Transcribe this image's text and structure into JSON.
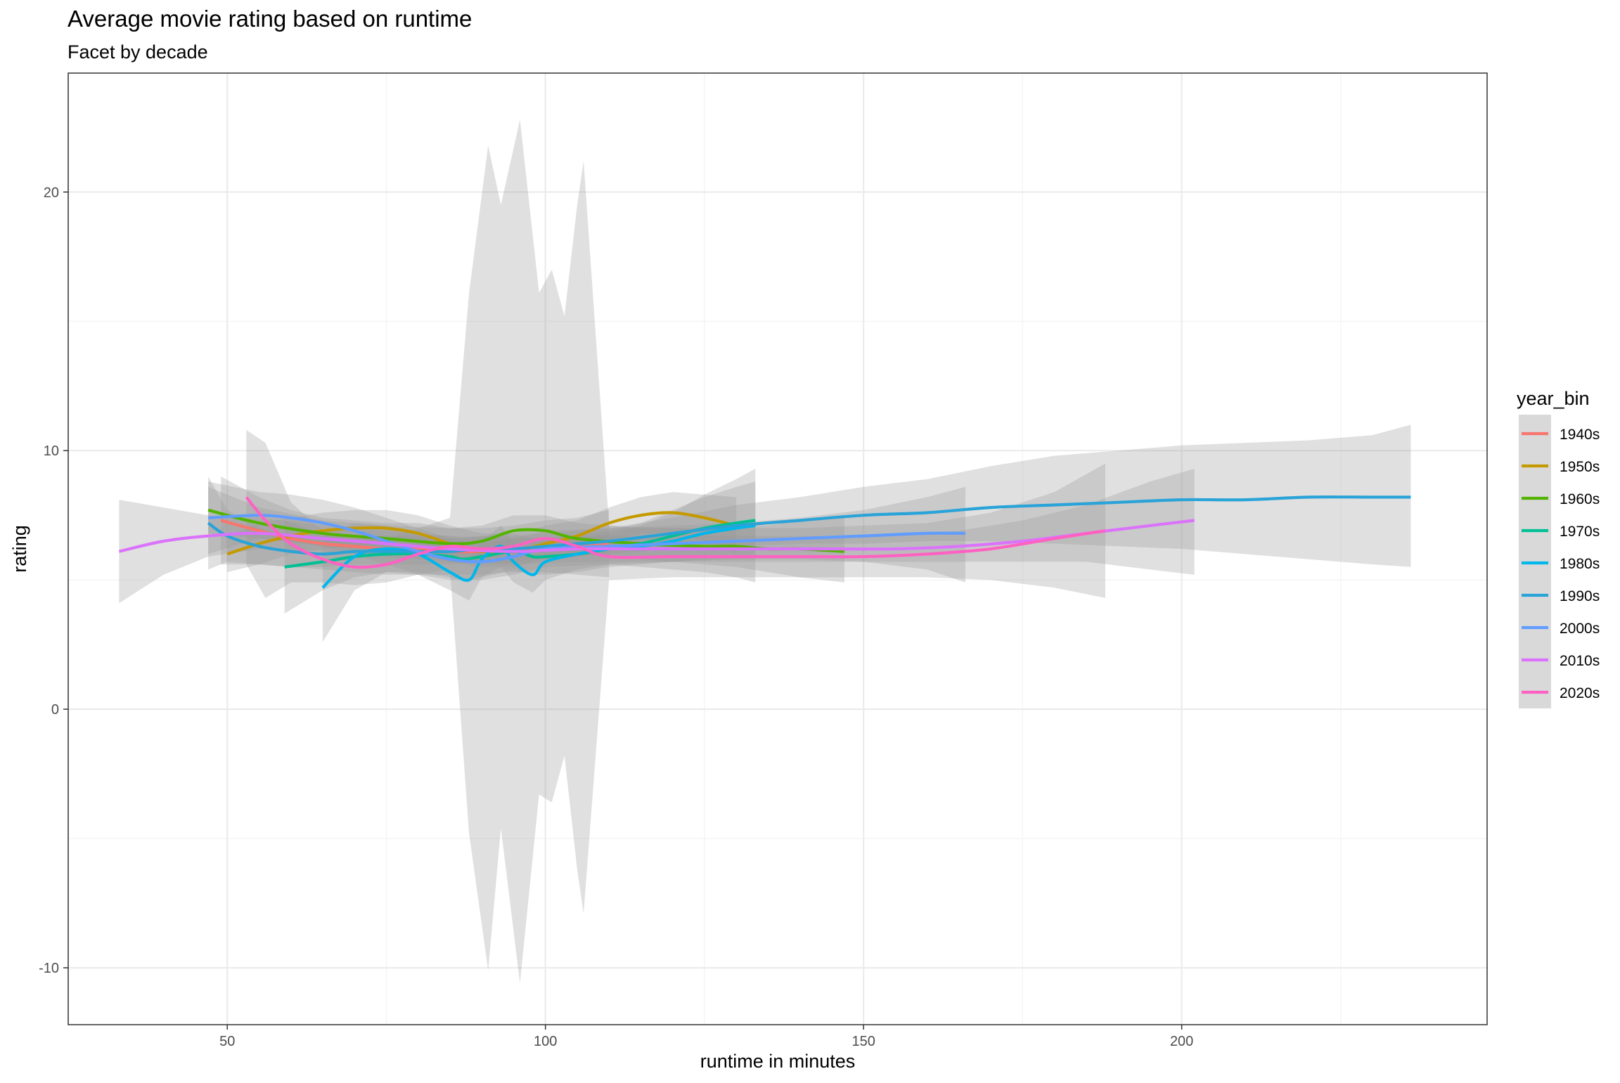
{
  "chart_data": {
    "type": "line",
    "title": "Average movie rating based on runtime",
    "subtitle": "Facet by decade",
    "xlabel": "runtime in minutes",
    "ylabel": "rating",
    "xlim": [
      25,
      248
    ],
    "ylim": [
      -12.2,
      24.6
    ],
    "x_ticks": [
      50,
      100,
      150,
      200
    ],
    "y_ticks": [
      -10,
      0,
      10,
      20
    ],
    "grid": true,
    "legend": {
      "title": "year_bin",
      "position": "right"
    },
    "colors": {
      "ribbon": "#999999",
      "panel_border": "#333333",
      "grid_major": "#ebebeb",
      "grid_minor": "#f5f5f5"
    },
    "series": [
      {
        "name": "1940s",
        "color": "#F8766D",
        "x": [
          49,
          55,
          60,
          65,
          70,
          75,
          80,
          85,
          90,
          95,
          100,
          105,
          110
        ],
        "y": [
          7.3,
          6.9,
          6.6,
          6.4,
          6.3,
          6.2,
          6.2,
          6.1,
          6.1,
          6.2,
          6.3,
          6.3,
          6.4
        ],
        "band": {
          "x": [
            49,
            55,
            60,
            65,
            70,
            75,
            80,
            85,
            90,
            95,
            100,
            105,
            110
          ],
          "lo": [
            5.6,
            5.6,
            5.5,
            5.4,
            5.3,
            5.2,
            5.2,
            5.2,
            5.2,
            5.3,
            5.3,
            5.2,
            5.1
          ],
          "hi": [
            9.0,
            8.2,
            7.7,
            7.4,
            7.3,
            7.2,
            7.2,
            7.0,
            7.0,
            7.1,
            7.3,
            7.4,
            7.7
          ]
        }
      },
      {
        "name": "1950s",
        "color": "#C49A00",
        "x": [
          50,
          55,
          60,
          65,
          70,
          75,
          80,
          85,
          90,
          95,
          100,
          105,
          110,
          115,
          120,
          125,
          130
        ],
        "y": [
          6.0,
          6.4,
          6.7,
          6.9,
          7.0,
          7.0,
          6.8,
          6.4,
          6.1,
          6.1,
          6.4,
          6.7,
          7.2,
          7.5,
          7.6,
          7.4,
          7.1
        ],
        "band": {
          "x": [
            50,
            55,
            60,
            65,
            70,
            75,
            80,
            85,
            90,
            95,
            100,
            105,
            110,
            115,
            120,
            125,
            130
          ],
          "lo": [
            5.3,
            5.6,
            6.0,
            6.2,
            6.3,
            6.3,
            6.1,
            5.7,
            5.5,
            5.5,
            5.8,
            6.1,
            6.5,
            6.8,
            6.8,
            6.5,
            6.0
          ],
          "hi": [
            6.7,
            7.2,
            7.4,
            7.6,
            7.7,
            7.7,
            7.5,
            7.1,
            6.8,
            6.8,
            7.1,
            7.3,
            7.8,
            8.2,
            8.4,
            8.3,
            8.2
          ]
        }
      },
      {
        "name": "1960s",
        "color": "#53B400",
        "x": [
          47,
          55,
          65,
          75,
          85,
          90,
          95,
          100,
          105,
          115,
          125,
          130,
          135,
          140,
          147
        ],
        "y": [
          7.7,
          7.2,
          6.8,
          6.6,
          6.4,
          6.5,
          6.9,
          6.9,
          6.6,
          6.4,
          6.3,
          6.3,
          6.2,
          6.2,
          6.1
        ],
        "band": {
          "x": [
            47,
            55,
            65,
            75,
            85,
            90,
            95,
            100,
            105,
            115,
            125,
            130,
            135,
            140,
            147
          ],
          "lo": [
            6.8,
            6.6,
            6.3,
            6.1,
            5.8,
            5.9,
            6.3,
            6.3,
            6.0,
            5.8,
            5.6,
            5.5,
            5.3,
            5.1,
            4.9
          ],
          "hi": [
            8.6,
            7.8,
            7.3,
            7.1,
            7.0,
            7.1,
            7.5,
            7.5,
            7.2,
            7.0,
            7.0,
            7.1,
            7.1,
            7.3,
            7.4
          ]
        }
      },
      {
        "name": "1970s",
        "color": "#00C094",
        "x": [
          59,
          65,
          70,
          75,
          80,
          85,
          87,
          90,
          95,
          98,
          100,
          105,
          110,
          115,
          120,
          125,
          130,
          133
        ],
        "y": [
          5.5,
          5.7,
          5.9,
          6.0,
          6.0,
          5.9,
          5.8,
          5.9,
          6.1,
          5.9,
          5.9,
          6.0,
          6.2,
          6.4,
          6.7,
          7.0,
          7.2,
          7.3
        ],
        "band": {
          "x": [
            59,
            65,
            70,
            75,
            80,
            85,
            87,
            90,
            95,
            98,
            100,
            105,
            110,
            115,
            120,
            125,
            130,
            133
          ],
          "lo": [
            3.7,
            4.6,
            5.1,
            5.3,
            5.3,
            5.1,
            5.0,
            5.1,
            5.4,
            5.2,
            5.2,
            5.3,
            5.5,
            5.6,
            5.7,
            5.8,
            5.8,
            5.8
          ],
          "hi": [
            7.3,
            6.8,
            6.7,
            6.7,
            6.7,
            6.7,
            6.6,
            6.7,
            6.8,
            6.6,
            6.6,
            6.7,
            6.9,
            7.2,
            7.7,
            8.2,
            8.6,
            8.8
          ]
        }
      },
      {
        "name": "1980s",
        "color": "#00B6EB",
        "x": [
          65,
          70,
          75,
          80,
          85,
          88,
          90,
          93,
          95,
          98,
          100,
          105,
          110,
          115,
          120,
          125,
          130,
          133
        ],
        "y": [
          4.7,
          5.9,
          6.2,
          6.0,
          5.3,
          5.0,
          5.8,
          6.3,
          5.7,
          5.2,
          5.7,
          6.0,
          6.2,
          6.3,
          6.5,
          6.8,
          7.0,
          7.1
        ],
        "band": {
          "x": [
            65,
            70,
            75,
            80,
            85,
            88,
            90,
            93,
            95,
            98,
            100,
            105,
            110,
            115,
            120,
            125,
            130,
            133
          ],
          "lo": [
            2.6,
            4.6,
            5.3,
            5.2,
            4.6,
            4.2,
            5.1,
            5.5,
            4.9,
            4.5,
            5.0,
            5.4,
            5.6,
            5.5,
            5.4,
            5.3,
            5.1,
            4.9
          ],
          "hi": [
            6.8,
            7.2,
            7.1,
            6.8,
            6.0,
            5.8,
            6.5,
            7.1,
            6.5,
            5.9,
            6.4,
            6.6,
            6.8,
            7.1,
            7.6,
            8.3,
            8.9,
            9.3
          ]
        }
      },
      {
        "name": "1990s",
        "color": "#29A3D8",
        "x": [
          47,
          50,
          55,
          60,
          65,
          70,
          75,
          80,
          85,
          90,
          95,
          100,
          110,
          120,
          130,
          140,
          150,
          160,
          170,
          180,
          190,
          200,
          210,
          220,
          230,
          236
        ],
        "y": [
          7.2,
          6.7,
          6.3,
          6.1,
          6.0,
          6.1,
          6.1,
          6.1,
          6.1,
          6.2,
          6.2,
          6.3,
          6.5,
          6.8,
          7.1,
          7.3,
          7.5,
          7.6,
          7.8,
          7.9,
          8.0,
          8.1,
          8.1,
          8.2,
          8.2,
          8.2
        ],
        "band": {
          "x": [
            47,
            50,
            55,
            60,
            65,
            70,
            75,
            80,
            85,
            90,
            95,
            100,
            110,
            120,
            130,
            140,
            150,
            160,
            170,
            180,
            190,
            200,
            210,
            220,
            230,
            236
          ],
          "lo": [
            5.4,
            5.7,
            5.6,
            5.5,
            5.5,
            5.6,
            5.6,
            5.6,
            5.6,
            5.7,
            5.7,
            5.8,
            6.0,
            6.2,
            6.3,
            6.4,
            6.4,
            6.5,
            6.5,
            6.4,
            6.3,
            6.2,
            6.0,
            5.8,
            5.6,
            5.5
          ],
          "hi": [
            9.0,
            7.7,
            7.0,
            6.7,
            6.5,
            6.6,
            6.6,
            6.6,
            6.6,
            6.7,
            6.7,
            6.8,
            7.0,
            7.4,
            7.9,
            8.2,
            8.6,
            8.9,
            9.4,
            9.8,
            10.0,
            10.2,
            10.3,
            10.4,
            10.6,
            11.0
          ]
        }
      },
      {
        "name": "2000s",
        "color": "#619CFF",
        "x": [
          47,
          55,
          60,
          65,
          70,
          75,
          80,
          85,
          90,
          95,
          100,
          110,
          120,
          130,
          140,
          150,
          160,
          166
        ],
        "y": [
          7.4,
          7.5,
          7.4,
          7.2,
          6.9,
          6.5,
          6.1,
          5.8,
          5.7,
          5.9,
          6.2,
          6.3,
          6.4,
          6.5,
          6.6,
          6.7,
          6.8,
          6.8
        ],
        "band": {
          "x": [
            47,
            55,
            60,
            65,
            70,
            75,
            80,
            85,
            90,
            95,
            100,
            110,
            120,
            130,
            140,
            150,
            160,
            166
          ],
          "lo": [
            6.0,
            6.6,
            6.5,
            6.3,
            6.0,
            5.6,
            5.2,
            5.0,
            5.0,
            5.2,
            5.5,
            5.6,
            5.7,
            5.8,
            5.8,
            5.7,
            5.4,
            4.9
          ],
          "hi": [
            8.8,
            8.4,
            8.3,
            8.1,
            7.8,
            7.4,
            7.0,
            6.6,
            6.4,
            6.6,
            6.9,
            7.0,
            7.1,
            7.2,
            7.4,
            7.7,
            8.2,
            8.6
          ]
        }
      },
      {
        "name": "2010s",
        "color": "#DB72FB",
        "x": [
          33,
          40,
          47,
          55,
          65,
          75,
          85,
          95,
          105,
          115,
          125,
          135,
          145,
          155,
          165,
          175,
          185,
          195,
          202
        ],
        "y": [
          6.1,
          6.5,
          6.7,
          6.8,
          6.6,
          6.4,
          6.2,
          6.1,
          6.2,
          6.2,
          6.2,
          6.2,
          6.2,
          6.2,
          6.3,
          6.5,
          6.8,
          7.1,
          7.3
        ],
        "band": {
          "x": [
            33,
            40,
            47,
            55,
            65,
            75,
            85,
            95,
            105,
            115,
            125,
            135,
            145,
            155,
            165,
            175,
            185,
            195,
            202
          ],
          "lo": [
            4.1,
            5.2,
            5.9,
            6.2,
            6.1,
            5.9,
            5.7,
            5.6,
            5.7,
            5.7,
            5.7,
            5.7,
            5.7,
            5.7,
            5.7,
            5.7,
            5.7,
            5.4,
            5.2
          ],
          "hi": [
            8.1,
            7.8,
            7.5,
            7.4,
            7.1,
            6.9,
            6.7,
            6.6,
            6.7,
            6.7,
            6.7,
            6.7,
            6.7,
            6.7,
            6.9,
            7.3,
            7.9,
            8.8,
            9.3
          ]
        }
      },
      {
        "name": "2020s",
        "color": "#FF61C3",
        "x": [
          53,
          56,
          60,
          65,
          70,
          75,
          80,
          85,
          90,
          95,
          100,
          105,
          110,
          120,
          130,
          140,
          150,
          160,
          170,
          180,
          188
        ],
        "y": [
          8.2,
          7.3,
          6.4,
          5.8,
          5.5,
          5.6,
          6.0,
          6.3,
          6.2,
          6.3,
          6.6,
          6.3,
          5.9,
          5.9,
          5.9,
          5.9,
          5.9,
          6.0,
          6.2,
          6.6,
          6.9
        ],
        "band": {
          "x": [
            53,
            56,
            60,
            65,
            70,
            75,
            80,
            85,
            88,
            91,
            93,
            96,
            99,
            101,
            103,
            105,
            106,
            110,
            120,
            130,
            140,
            150,
            160,
            170,
            180,
            188
          ],
          "lo": [
            5.6,
            4.3,
            4.9,
            4.9,
            4.8,
            4.9,
            5.2,
            5.4,
            -4.8,
            -10.1,
            -4.6,
            -10.6,
            -3.3,
            -3.6,
            -1.8,
            -6.2,
            -7.9,
            5.0,
            5.1,
            5.1,
            5.1,
            5.1,
            5.1,
            5.0,
            4.7,
            4.3
          ],
          "hi": [
            10.8,
            10.3,
            8.0,
            6.9,
            6.5,
            6.6,
            7.0,
            7.4,
            16.1,
            21.8,
            19.5,
            22.8,
            16.1,
            17.0,
            15.2,
            19.5,
            21.2,
            7.1,
            7.0,
            7.0,
            7.0,
            7.1,
            7.2,
            7.6,
            8.4,
            9.5
          ]
        }
      }
    ]
  }
}
